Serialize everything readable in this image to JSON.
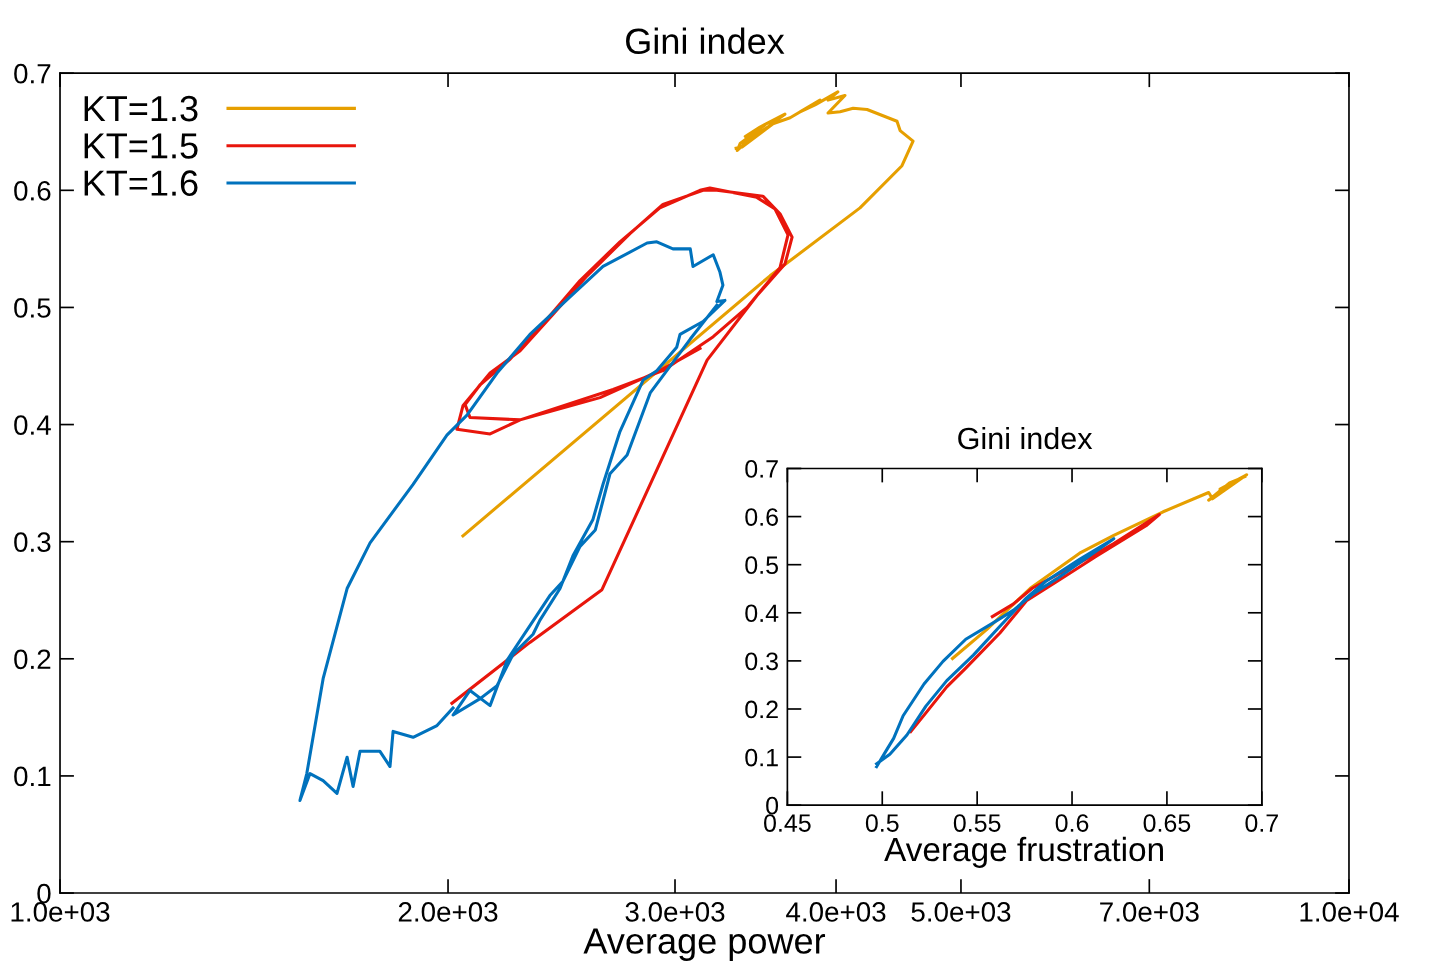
{
  "chart_data": [
    {
      "type": "line",
      "title": "Gini index",
      "xlabel": "Average power",
      "log": "x",
      "xlim": [
        1000,
        10000
      ],
      "ylim": [
        0,
        0.7
      ],
      "xticks": [
        {
          "value": 1000,
          "label": "1.0e+03"
        },
        {
          "value": 2000,
          "label": "2.0e+03"
        },
        {
          "value": 3000,
          "label": "3.0e+03"
        },
        {
          "value": 4000,
          "label": "4.0e+03"
        },
        {
          "value": 5000,
          "label": "5.0e+03"
        },
        {
          "value": 7000,
          "label": "7.0e+03"
        },
        {
          "value": 10000,
          "label": "1.0e+04"
        }
      ],
      "yticks": [
        0,
        0.1,
        0.2,
        0.3,
        0.4,
        0.5,
        0.6,
        0.7
      ],
      "legend": "top left",
      "marker": "none",
      "line_style": "solid",
      "series": [
        {
          "name": "KT=1.3",
          "color": "#e69f00",
          "x": [
            2054,
            3555,
            4175,
            4500,
            4590,
            4485,
            4460,
            4228,
            4124,
            4029,
            3943,
            4064,
            3943,
            4013,
            3853,
            3751,
            3887,
            3685,
            3555,
            3651,
            3492,
            3401,
            3524,
            3370,
            3353,
            3429,
            3587,
            3382,
            3346
          ],
          "values": [
            0.305,
            0.527,
            0.585,
            0.621,
            0.642,
            0.651,
            0.659,
            0.669,
            0.67,
            0.667,
            0.666,
            0.681,
            0.677,
            0.684,
            0.673,
            0.667,
            0.677,
            0.662,
            0.656,
            0.665,
            0.654,
            0.646,
            0.656,
            0.64,
            0.634,
            0.644,
            0.658,
            0.637,
            0.636
          ]
        },
        {
          "name": "KT=1.5",
          "color": "#e8160c",
          "x": [
            2014,
            2315,
            2633,
            3177,
            3472,
            3651,
            3698,
            3619,
            3510,
            3233,
            3154,
            2936,
            2768,
            2564,
            2412,
            2275,
            2156,
            2054,
            2032,
            2156,
            2275,
            2686,
            2936,
            3212,
            3412,
            3619,
            3671,
            3587,
            3472,
            3193,
            3137,
            2920,
            2719,
            2532,
            2378,
            2235,
            2118,
            2062,
            2080,
            2275,
            2624,
            2920,
            3137
          ],
          "values": [
            0.162,
            0.214,
            0.259,
            0.455,
            0.51,
            0.537,
            0.56,
            0.58,
            0.595,
            0.6,
            0.6,
            0.588,
            0.563,
            0.527,
            0.494,
            0.463,
            0.444,
            0.416,
            0.396,
            0.392,
            0.404,
            0.43,
            0.446,
            0.475,
            0.5,
            0.534,
            0.562,
            0.584,
            0.594,
            0.602,
            0.6,
            0.585,
            0.556,
            0.523,
            0.488,
            0.456,
            0.434,
            0.417,
            0.406,
            0.404,
            0.423,
            0.446,
            0.465
          ]
        },
        {
          "name": "KT=1.6",
          "color": "#0072bd",
          "x": [
            2018,
            1961,
            1879,
            1813,
            1803,
            1771,
            1709,
            1688,
            1670,
            1640,
            1600,
            1563,
            1535,
            1554,
            1600,
            1670,
            1740,
            1879,
            1996,
            2069,
            2183,
            2315,
            2487,
            2638,
            2854,
            2904,
            2989,
            3083,
            3098,
            3212,
            3251,
            3268,
            3233,
            3280,
            3154,
            3027,
            3009,
            2904,
            2834,
            2719,
            2638,
            2591,
            2500,
            2443,
            2357,
            2328,
            2247,
            2183,
            2118,
            2018,
            2080,
            2156,
            2223,
            2399,
            2455,
            2532,
            2602,
            2671,
            2754,
            2870,
            3083,
            3233
          ],
          "values": [
            0.158,
            0.143,
            0.133,
            0.138,
            0.108,
            0.121,
            0.121,
            0.091,
            0.116,
            0.085,
            0.096,
            0.102,
            0.079,
            0.102,
            0.183,
            0.26,
            0.299,
            0.349,
            0.391,
            0.408,
            0.444,
            0.477,
            0.509,
            0.535,
            0.555,
            0.556,
            0.55,
            0.55,
            0.535,
            0.545,
            0.53,
            0.519,
            0.505,
            0.506,
            0.488,
            0.477,
            0.466,
            0.446,
            0.438,
            0.394,
            0.349,
            0.319,
            0.288,
            0.26,
            0.233,
            0.221,
            0.204,
            0.177,
            0.166,
            0.152,
            0.173,
            0.16,
            0.199,
            0.254,
            0.266,
            0.296,
            0.31,
            0.358,
            0.374,
            0.427,
            0.473,
            0.502
          ]
        }
      ]
    },
    {
      "type": "line",
      "title": "Gini index",
      "xlabel": "Average frustration",
      "xlim": [
        0.45,
        0.7
      ],
      "ylim": [
        0,
        0.7
      ],
      "xticks": [
        0.45,
        0.5,
        0.55,
        0.6,
        0.65,
        0.7
      ],
      "yticks": [
        0,
        0.1,
        0.2,
        0.3,
        0.4,
        0.5,
        0.6,
        0.7
      ],
      "marker": "none",
      "line_style": "solid",
      "series": [
        {
          "color": "#e69f00",
          "x": [
            0.537,
            0.555,
            0.578,
            0.604,
            0.622,
            0.648,
            0.672,
            0.674,
            0.692,
            0.678,
            0.688,
            0.672,
            0.683,
            0.691
          ],
          "values": [
            0.305,
            0.365,
            0.451,
            0.524,
            0.561,
            0.61,
            0.65,
            0.637,
            0.687,
            0.657,
            0.677,
            0.634,
            0.67,
            0.683
          ]
        },
        {
          "color": "#e8160c",
          "x": [
            0.558,
            0.569,
            0.579,
            0.604,
            0.622,
            0.646,
            0.639,
            0.613,
            0.592,
            0.576,
            0.562,
            0.544,
            0.534,
            0.523,
            0.515
          ],
          "values": [
            0.392,
            0.418,
            0.451,
            0.504,
            0.544,
            0.604,
            0.581,
            0.518,
            0.465,
            0.425,
            0.358,
            0.285,
            0.246,
            0.192,
            0.153
          ]
        },
        {
          "color": "#0072bd",
          "x": [
            0.497,
            0.502,
            0.506,
            0.511,
            0.522,
            0.532,
            0.544,
            0.558,
            0.569,
            0.579,
            0.592,
            0.604,
            0.622,
            0.604,
            0.586,
            0.576,
            0.562,
            0.548,
            0.534,
            0.523,
            0.513,
            0.504,
            0.497
          ],
          "values": [
            0.08,
            0.113,
            0.139,
            0.186,
            0.252,
            0.299,
            0.345,
            0.378,
            0.405,
            0.438,
            0.471,
            0.504,
            0.554,
            0.511,
            0.465,
            0.431,
            0.372,
            0.312,
            0.259,
            0.206,
            0.146,
            0.106,
            0.086
          ]
        }
      ]
    }
  ]
}
